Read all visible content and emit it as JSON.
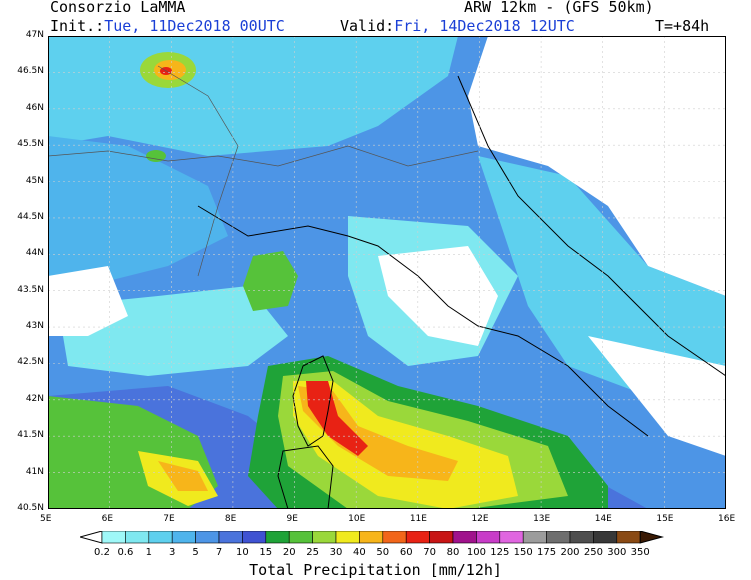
{
  "header": {
    "org": "Consorzio LaMMA",
    "model": "ARW 12km - (GFS 50km)",
    "init_label": "Init.:",
    "init_value": "Tue, 11Dec2018 00UTC",
    "valid_label": "Valid:",
    "valid_value": "Fri, 14Dec2018 12UTC",
    "lead": "T=+84h"
  },
  "axes": {
    "lat_labels": [
      "47N",
      "46.5N",
      "46N",
      "45.5N",
      "45N",
      "44.5N",
      "44N",
      "43.5N",
      "43N",
      "42.5N",
      "42N",
      "41.5N",
      "41N",
      "40.5N"
    ],
    "lon_labels": [
      "5E",
      "6E",
      "7E",
      "8E",
      "9E",
      "10E",
      "11E",
      "12E",
      "13E",
      "14E",
      "15E",
      "16E"
    ]
  },
  "colorbar": {
    "title": "Total Precipitation [mm/12h]",
    "levels": [
      "0.2",
      "0.6",
      "1",
      "3",
      "5",
      "7",
      "10",
      "15",
      "20",
      "25",
      "30",
      "40",
      "50",
      "60",
      "70",
      "80",
      "100",
      "125",
      "150",
      "175",
      "200",
      "250",
      "300",
      "350"
    ],
    "colors": [
      "#9ff8f8",
      "#7fe8f0",
      "#5ed0ee",
      "#4fb4ec",
      "#4d95e6",
      "#4a73dc",
      "#3f52d2",
      "#1fa338",
      "#56c23a",
      "#9ad83a",
      "#f0ea1e",
      "#f7b51a",
      "#f2661a",
      "#e82214",
      "#c81414",
      "#a0128c",
      "#c83cc8",
      "#e066e0",
      "#9c9c9c",
      "#6e6e6e",
      "#4e4e4e",
      "#383838",
      "#8a4a14",
      "#5c2c08",
      "#3a1a04"
    ]
  },
  "palette": {
    "land": "#ffffff",
    "sea_light": "#7fe8f0",
    "sea_mid": "#4fb4ec",
    "deep": "#4a73dc",
    "green": "#1fa338",
    "lightgreen": "#56c23a",
    "yellowgreen": "#9ad83a",
    "yellow": "#f0ea1e",
    "orange": "#f7b51a",
    "red": "#e82214",
    "darkred": "#c81414"
  }
}
